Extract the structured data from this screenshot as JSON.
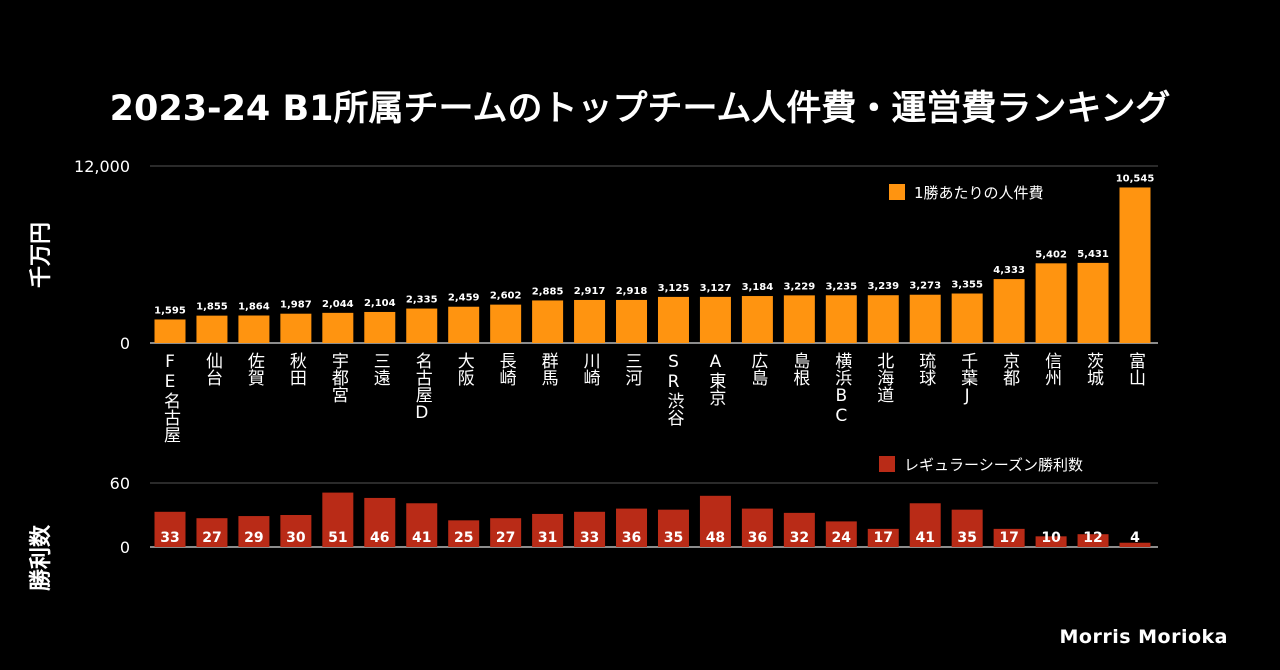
{
  "chart_data": [
    {
      "type": "bar",
      "title": "2023-24 B1所属チームのトップチーム人件費・運営費ランキング",
      "ylabel": "千万円",
      "ylim": [
        0,
        12000
      ],
      "yticks": [
        "0",
        "12,000"
      ],
      "legend": "1勝あたりの人件費",
      "legend_position": "top-right",
      "color": "#ff9410",
      "categories": [
        "FE名古屋",
        "仙台",
        "佐賀",
        "秋田",
        "宇都宮",
        "三遠",
        "名古屋D",
        "大阪",
        "長崎",
        "群馬",
        "川崎",
        "三河",
        "SR渋谷",
        "A東京",
        "広島",
        "島根",
        "横浜BC",
        "北海道",
        "琉球",
        "千葉J",
        "京都",
        "信州",
        "茨城",
        "富山"
      ],
      "values": [
        1595,
        1855,
        1864,
        1987,
        2044,
        2104,
        2335,
        2459,
        2602,
        2885,
        2917,
        2918,
        3125,
        3127,
        3184,
        3229,
        3235,
        3239,
        3273,
        3355,
        4333,
        5402,
        5431,
        10545
      ],
      "value_labels": [
        "1,595",
        "1,855",
        "1,864",
        "1,987",
        "2,044",
        "2,104",
        "2,335",
        "2,459",
        "2,602",
        "2,885",
        "2,917",
        "2,918",
        "3,125",
        "3,127",
        "3,184",
        "3,229",
        "3,235",
        "3,239",
        "3,273",
        "3,355",
        "4,333",
        "5,402",
        "5,431",
        "10,545"
      ]
    },
    {
      "type": "bar",
      "ylabel": "勝利数",
      "ylim": [
        0,
        60
      ],
      "yticks": [
        "0",
        "60"
      ],
      "legend": "レギュラーシーズン勝利数",
      "legend_position": "top-right",
      "color": "#b92b17",
      "values": [
        33,
        27,
        29,
        30,
        51,
        46,
        41,
        25,
        27,
        31,
        33,
        36,
        35,
        48,
        36,
        32,
        24,
        17,
        41,
        35,
        17,
        10,
        12,
        4
      ]
    }
  ],
  "credit": "Morris Morioka"
}
